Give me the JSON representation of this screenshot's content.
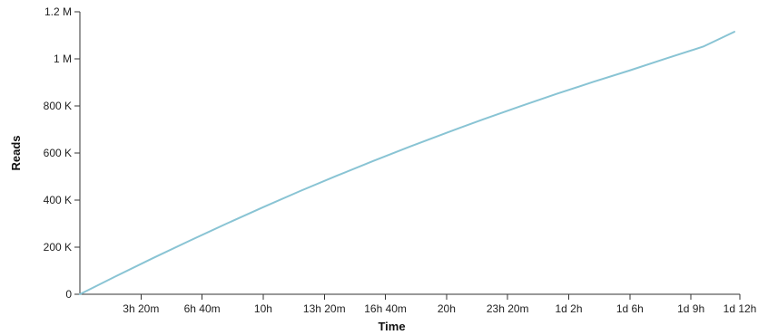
{
  "chart_data": {
    "type": "line",
    "title": "",
    "xlabel": "Time",
    "ylabel": "Reads",
    "x_unit": "hours",
    "xlim": [
      0,
      36
    ],
    "ylim": [
      0,
      1200000
    ],
    "x_ticks": [
      {
        "value": 3.3333,
        "label": "3h 20m"
      },
      {
        "value": 6.6667,
        "label": "6h 40m"
      },
      {
        "value": 10,
        "label": "10h"
      },
      {
        "value": 13.3333,
        "label": "13h 20m"
      },
      {
        "value": 16.6667,
        "label": "16h 40m"
      },
      {
        "value": 20,
        "label": "20h"
      },
      {
        "value": 23.3333,
        "label": "23h 20m"
      },
      {
        "value": 26.6667,
        "label": "1d 2h"
      },
      {
        "value": 30,
        "label": "1d 6h"
      },
      {
        "value": 33.3333,
        "label": "1d 9h"
      },
      {
        "value": 36,
        "label": "1d 12h"
      }
    ],
    "y_ticks": [
      {
        "value": 0,
        "label": "0"
      },
      {
        "value": 200000,
        "label": "200 K"
      },
      {
        "value": 400000,
        "label": "400 K"
      },
      {
        "value": 600000,
        "label": "600 K"
      },
      {
        "value": 800000,
        "label": "800 K"
      },
      {
        "value": 1000000,
        "label": "1 M"
      },
      {
        "value": 1200000,
        "label": "1.2 M"
      }
    ],
    "grid": false,
    "legend": "none",
    "series": [
      {
        "color": "#89c4d4",
        "x": [
          0,
          2,
          4,
          6,
          8,
          10,
          12,
          14,
          16,
          18,
          20,
          22,
          24,
          26,
          28,
          30,
          32,
          34,
          35.7
        ],
        "y": [
          0,
          78000,
          154000,
          228000,
          300000,
          370000,
          438000,
          503000,
          566000,
          627000,
          686000,
          743000,
          798000,
          851000,
          902000,
          951000,
          1002000,
          1052000,
          1115000
        ]
      }
    ]
  }
}
